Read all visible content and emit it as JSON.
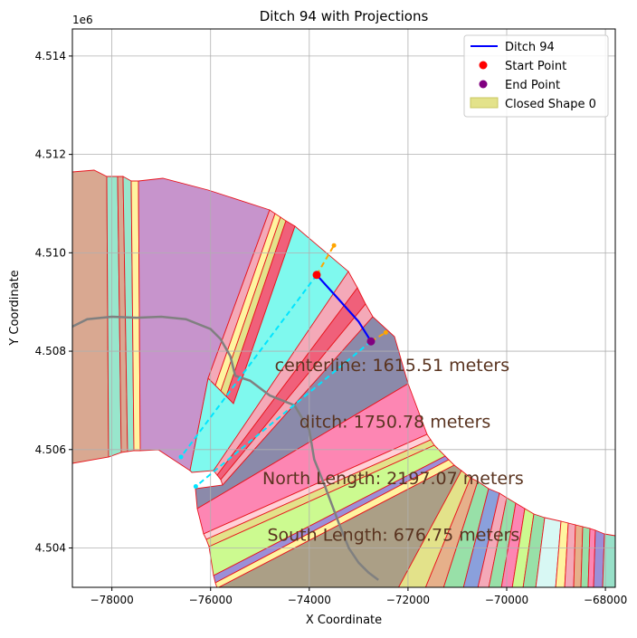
{
  "chart_data": {
    "type": "line",
    "title": "Ditch 94 with Projections",
    "xlabel": "X Coordinate",
    "ylabel": "Y Coordinate",
    "y_offset_label": "1e6",
    "xlim": [
      -78800,
      -67800
    ],
    "ylim": [
      4503200,
      4514550
    ],
    "grid": true,
    "xticks": [
      -78000,
      -76000,
      -74000,
      -72000,
      -70000,
      -68000
    ],
    "xtick_labels": [
      "−78000",
      "−76000",
      "−74000",
      "−72000",
      "−70000",
      "−68000"
    ],
    "yticks": [
      4504000,
      4506000,
      4508000,
      4510000,
      4512000,
      4514000
    ],
    "ytick_labels": [
      "4.504",
      "4.506",
      "4.508",
      "4.510",
      "4.512",
      "4.514"
    ],
    "legend_position": "top-right",
    "legend": [
      {
        "label": "Ditch 94",
        "kind": "line",
        "color": "#0000ff"
      },
      {
        "label": "Start Point",
        "kind": "marker",
        "color": "#ff0000"
      },
      {
        "label": "End Point",
        "kind": "marker",
        "color": "#800080"
      },
      {
        "label": "Closed Shape 0",
        "kind": "patch",
        "color": "#e3e28a"
      }
    ],
    "ditch": {
      "name": "Ditch 94",
      "x": [
        -73850,
        -73400,
        -73000,
        -72750
      ],
      "y": [
        4509550,
        4509050,
        4508600,
        4508200
      ]
    },
    "start_point": {
      "x": -73850,
      "y": 4509550
    },
    "end_point": {
      "x": -72750,
      "y": 4508200
    },
    "projections": [
      {
        "color": "#ffa500",
        "x": [
          -73850,
          -73500
        ],
        "y": [
          4509550,
          4510150
        ]
      },
      {
        "color": "#ffa500",
        "x": [
          -72750,
          -72450
        ],
        "y": [
          4508200,
          4508380
        ]
      },
      {
        "color": "#00e5ff",
        "x": [
          -73850,
          -76600
        ],
        "y": [
          4509550,
          4505850
        ]
      },
      {
        "color": "#00e5ff",
        "x": [
          -72750,
          -76300
        ],
        "y": [
          4508200,
          4505250
        ]
      }
    ],
    "gray_line": {
      "x": [
        -78800,
        -78500,
        -78000,
        -77500,
        -77000,
        -76500,
        -76000,
        -75800,
        -75600,
        -75500,
        -75200,
        -74800,
        -74300,
        -74000,
        -73900,
        -73700,
        -73400,
        -73200,
        -73000,
        -72800,
        -72600
      ],
      "y": [
        4508500,
        4508650,
        4508700,
        4508680,
        4508700,
        4508650,
        4508450,
        4508250,
        4507900,
        4507500,
        4507400,
        4507100,
        4506900,
        4506400,
        4505800,
        4505300,
        4504500,
        4504000,
        4503700,
        4503500,
        4503350
      ]
    },
    "annotations": [
      {
        "text": "centerline: 1615.51 meters",
        "x": -74700,
        "y": 4507600
      },
      {
        "text": "ditch: 1750.78 meters",
        "x": -74200,
        "y": 4506450
      },
      {
        "text": "North Length: 2197.07 meters",
        "x": -74950,
        "y": 4505300
      },
      {
        "text": "South Length: 676.75 meters",
        "x": -74850,
        "y": 4504150
      }
    ]
  }
}
